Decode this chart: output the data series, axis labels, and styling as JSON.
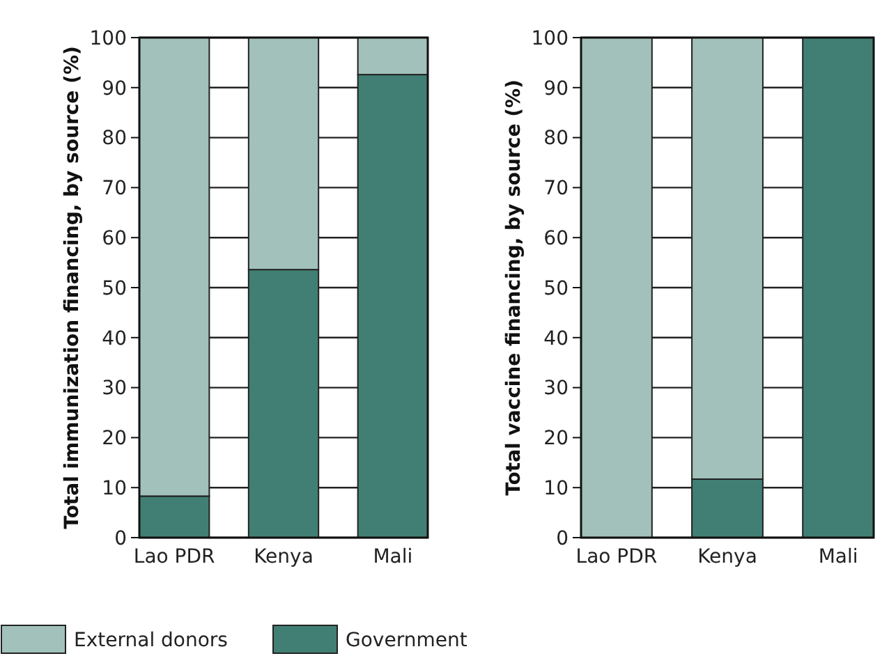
{
  "chart_data": [
    {
      "type": "bar",
      "stacked": true,
      "ylabel": "Total immunization financing, by source (%)",
      "categories": [
        "Lao PDR",
        "Kenya",
        "Mali"
      ],
      "ylim": [
        0,
        100
      ],
      "yticks": [
        0,
        10,
        20,
        30,
        40,
        50,
        60,
        70,
        80,
        90,
        100
      ],
      "grid": "y",
      "legend": "bottom",
      "series": [
        {
          "name": "Government",
          "color": "#417f74",
          "values": [
            8.3,
            53.6,
            92.6
          ]
        },
        {
          "name": "External donors",
          "color": "#a1c1ba",
          "values": [
            91.7,
            46.4,
            7.4
          ]
        }
      ]
    },
    {
      "type": "bar",
      "stacked": true,
      "ylabel": "Total vaccine financing, by source (%)",
      "categories": [
        "Lao PDR",
        "Kenya",
        "Mali"
      ],
      "ylim": [
        0,
        100
      ],
      "yticks": [
        0,
        10,
        20,
        30,
        40,
        50,
        60,
        70,
        80,
        90,
        100
      ],
      "grid": "y",
      "series": [
        {
          "color": "#417f74",
          "values": [
            0,
            11.7,
            100
          ]
        },
        {
          "color": "#a1c1ba",
          "values": [
            100,
            88.3,
            0
          ]
        }
      ]
    }
  ]
}
